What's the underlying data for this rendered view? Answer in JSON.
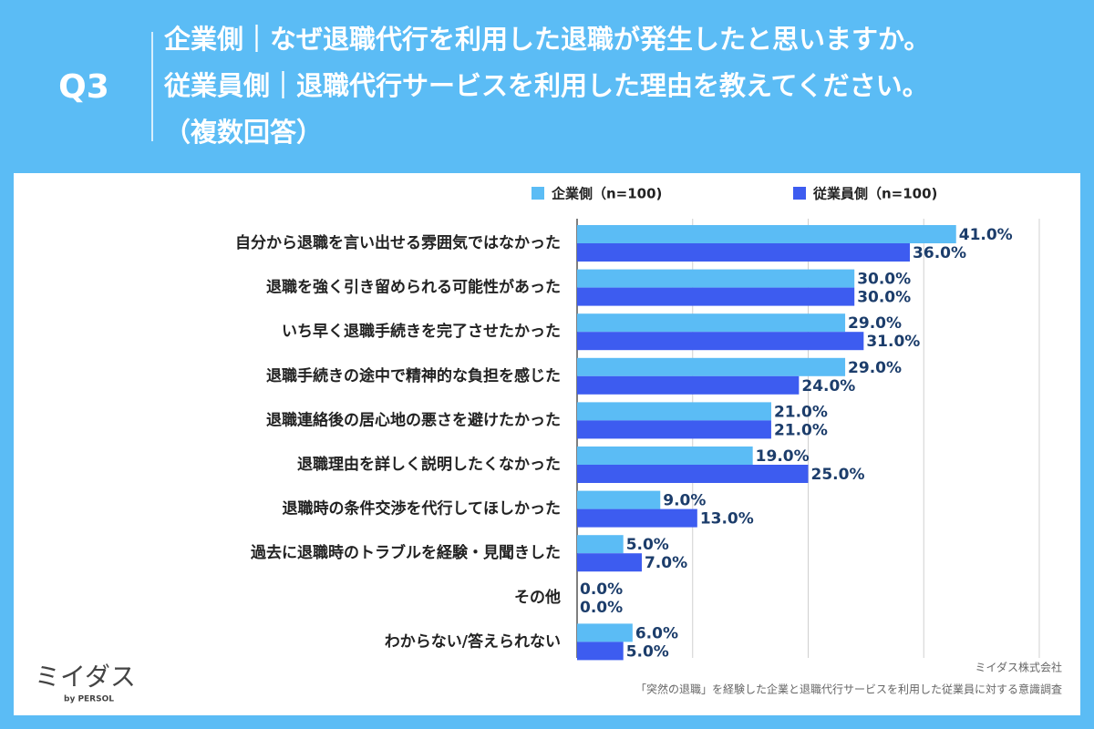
{
  "header": {
    "question": "Q3",
    "lines": [
      "企業側｜なぜ退職代行を利用した退職が発生したと思いますか。",
      "従業員側｜退職代行サービスを利用した理由を教えてください。",
      "（複数回答）"
    ]
  },
  "chart_data": {
    "type": "hbar",
    "categories": [
      "自分から退職を言い出せる雰囲気ではなかった",
      "退職を強く引き留められる可能性があった",
      "いち早く退職手続きを完了させたかった",
      "退職手続きの途中で精神的な負担を感じた",
      "退職連絡後の居心地の悪さを避けたかった",
      "退職理由を詳しく説明したくなかった",
      "退職時の条件交渉を代行してほしかった",
      "過去に退職時のトラブルを経験・見聞きした",
      "その他",
      "わからない/答えられない"
    ],
    "series": [
      {
        "name": "企業側（n=100)",
        "color": "#5bbcf5",
        "values": [
          41,
          30,
          29,
          29,
          21,
          19,
          9,
          5,
          0,
          6
        ],
        "value_labels": [
          "41.0%",
          "30.0%",
          "29.0%",
          "29.0%",
          "21.0%",
          "19.0%",
          "9.0%",
          "5.0%",
          "0.0%",
          "6.0%"
        ]
      },
      {
        "name": "従業員側（n=100)",
        "color": "#3d5cf0",
        "values": [
          36,
          30,
          31,
          24,
          21,
          25,
          13,
          7,
          0,
          5
        ],
        "value_labels": [
          "36.0%",
          "30.0%",
          "31.0%",
          "24.0%",
          "21.0%",
          "25.0%",
          "13.0%",
          "7.0%",
          "0.0%",
          "5.0%"
        ]
      }
    ],
    "xlim": [
      0,
      50
    ],
    "xticks": [
      0,
      12.5,
      25,
      37.5,
      50
    ],
    "grid": true
  },
  "footer": {
    "company": "ミイダス株式会社",
    "survey": "「突然の退職」を経験した企業と退職代行サービスを利用した従業員に対する意識調査",
    "logo": "ミイダス",
    "logo_sub": "by PERSOL"
  }
}
